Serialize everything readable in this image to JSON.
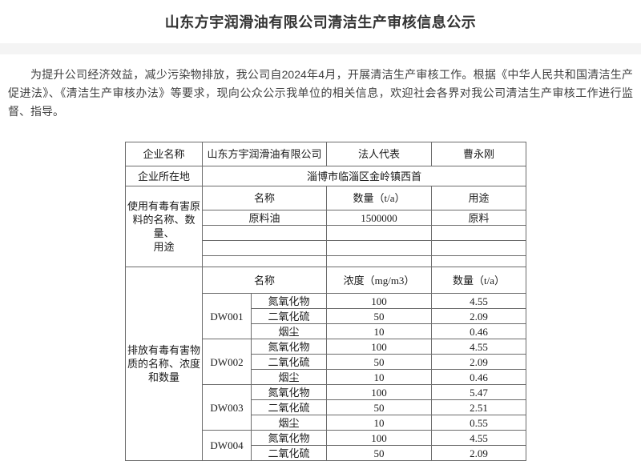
{
  "page": {
    "title": "山东方宇润滑油有限公司清洁生产审核信息公示",
    "intro": "为提升公司经济效益，减少污染物排放，我公司自2024年4月，开展清洁生产审核工作。根据《中华人民共和国清洁生产促进法》、《清洁生产审核办法》等要求，现向公众公示我单位的相关信息，欢迎社会各界对我公司清洁生产审核工作进行监督、指导。"
  },
  "table": {
    "company": {
      "name_label": "企业名称",
      "name": "山东方宇润滑油有限公司",
      "legal_rep_label": "法人代表",
      "legal_rep": "曹永刚",
      "location_label": "企业所在地",
      "location": "淄博市临淄区金岭镇西首"
    },
    "raw_materials": {
      "section_label": "使用有毒有害原\n料的名称、数量、\n用途",
      "headers": [
        "名称",
        "数量（t/a）",
        "用途"
      ],
      "rows": [
        [
          "原料油",
          "1500000",
          "原料"
        ],
        [
          "",
          "",
          ""
        ],
        [
          "",
          "",
          ""
        ],
        [
          "",
          "",
          ""
        ]
      ]
    },
    "emissions": {
      "section_label": "排放有毒有害物\n质的名称、浓度\n和数量",
      "headers": [
        "名称",
        "浓度（mg/m3）",
        "数量（t/a）"
      ],
      "outlets": [
        {
          "id": "DW001",
          "rows": [
            [
              "氮氧化物",
              "100",
              "4.55"
            ],
            [
              "二氧化硫",
              "50",
              "2.09"
            ],
            [
              "烟尘",
              "10",
              "0.46"
            ]
          ]
        },
        {
          "id": "DW002",
          "rows": [
            [
              "氮氧化物",
              "100",
              "4.55"
            ],
            [
              "二氧化硫",
              "50",
              "2.09"
            ],
            [
              "烟尘",
              "10",
              "0.46"
            ]
          ]
        },
        {
          "id": "DW003",
          "rows": [
            [
              "氮氧化物",
              "100",
              "5.47"
            ],
            [
              "二氧化硫",
              "50",
              "2.51"
            ],
            [
              "烟尘",
              "10",
              "0.55"
            ]
          ]
        },
        {
          "id": "DW004",
          "rows": [
            [
              "氮氧化物",
              "100",
              "4.55"
            ],
            [
              "二氧化硫",
              "50",
              "2.09"
            ]
          ]
        }
      ]
    }
  },
  "colors": {
    "header_bg": "#ffffff",
    "band_bg": "#f4f4f4",
    "title_color": "#333333",
    "body_color": "#404040",
    "table_color": "#1a1a1a",
    "border_color": "#6b6b6b"
  }
}
